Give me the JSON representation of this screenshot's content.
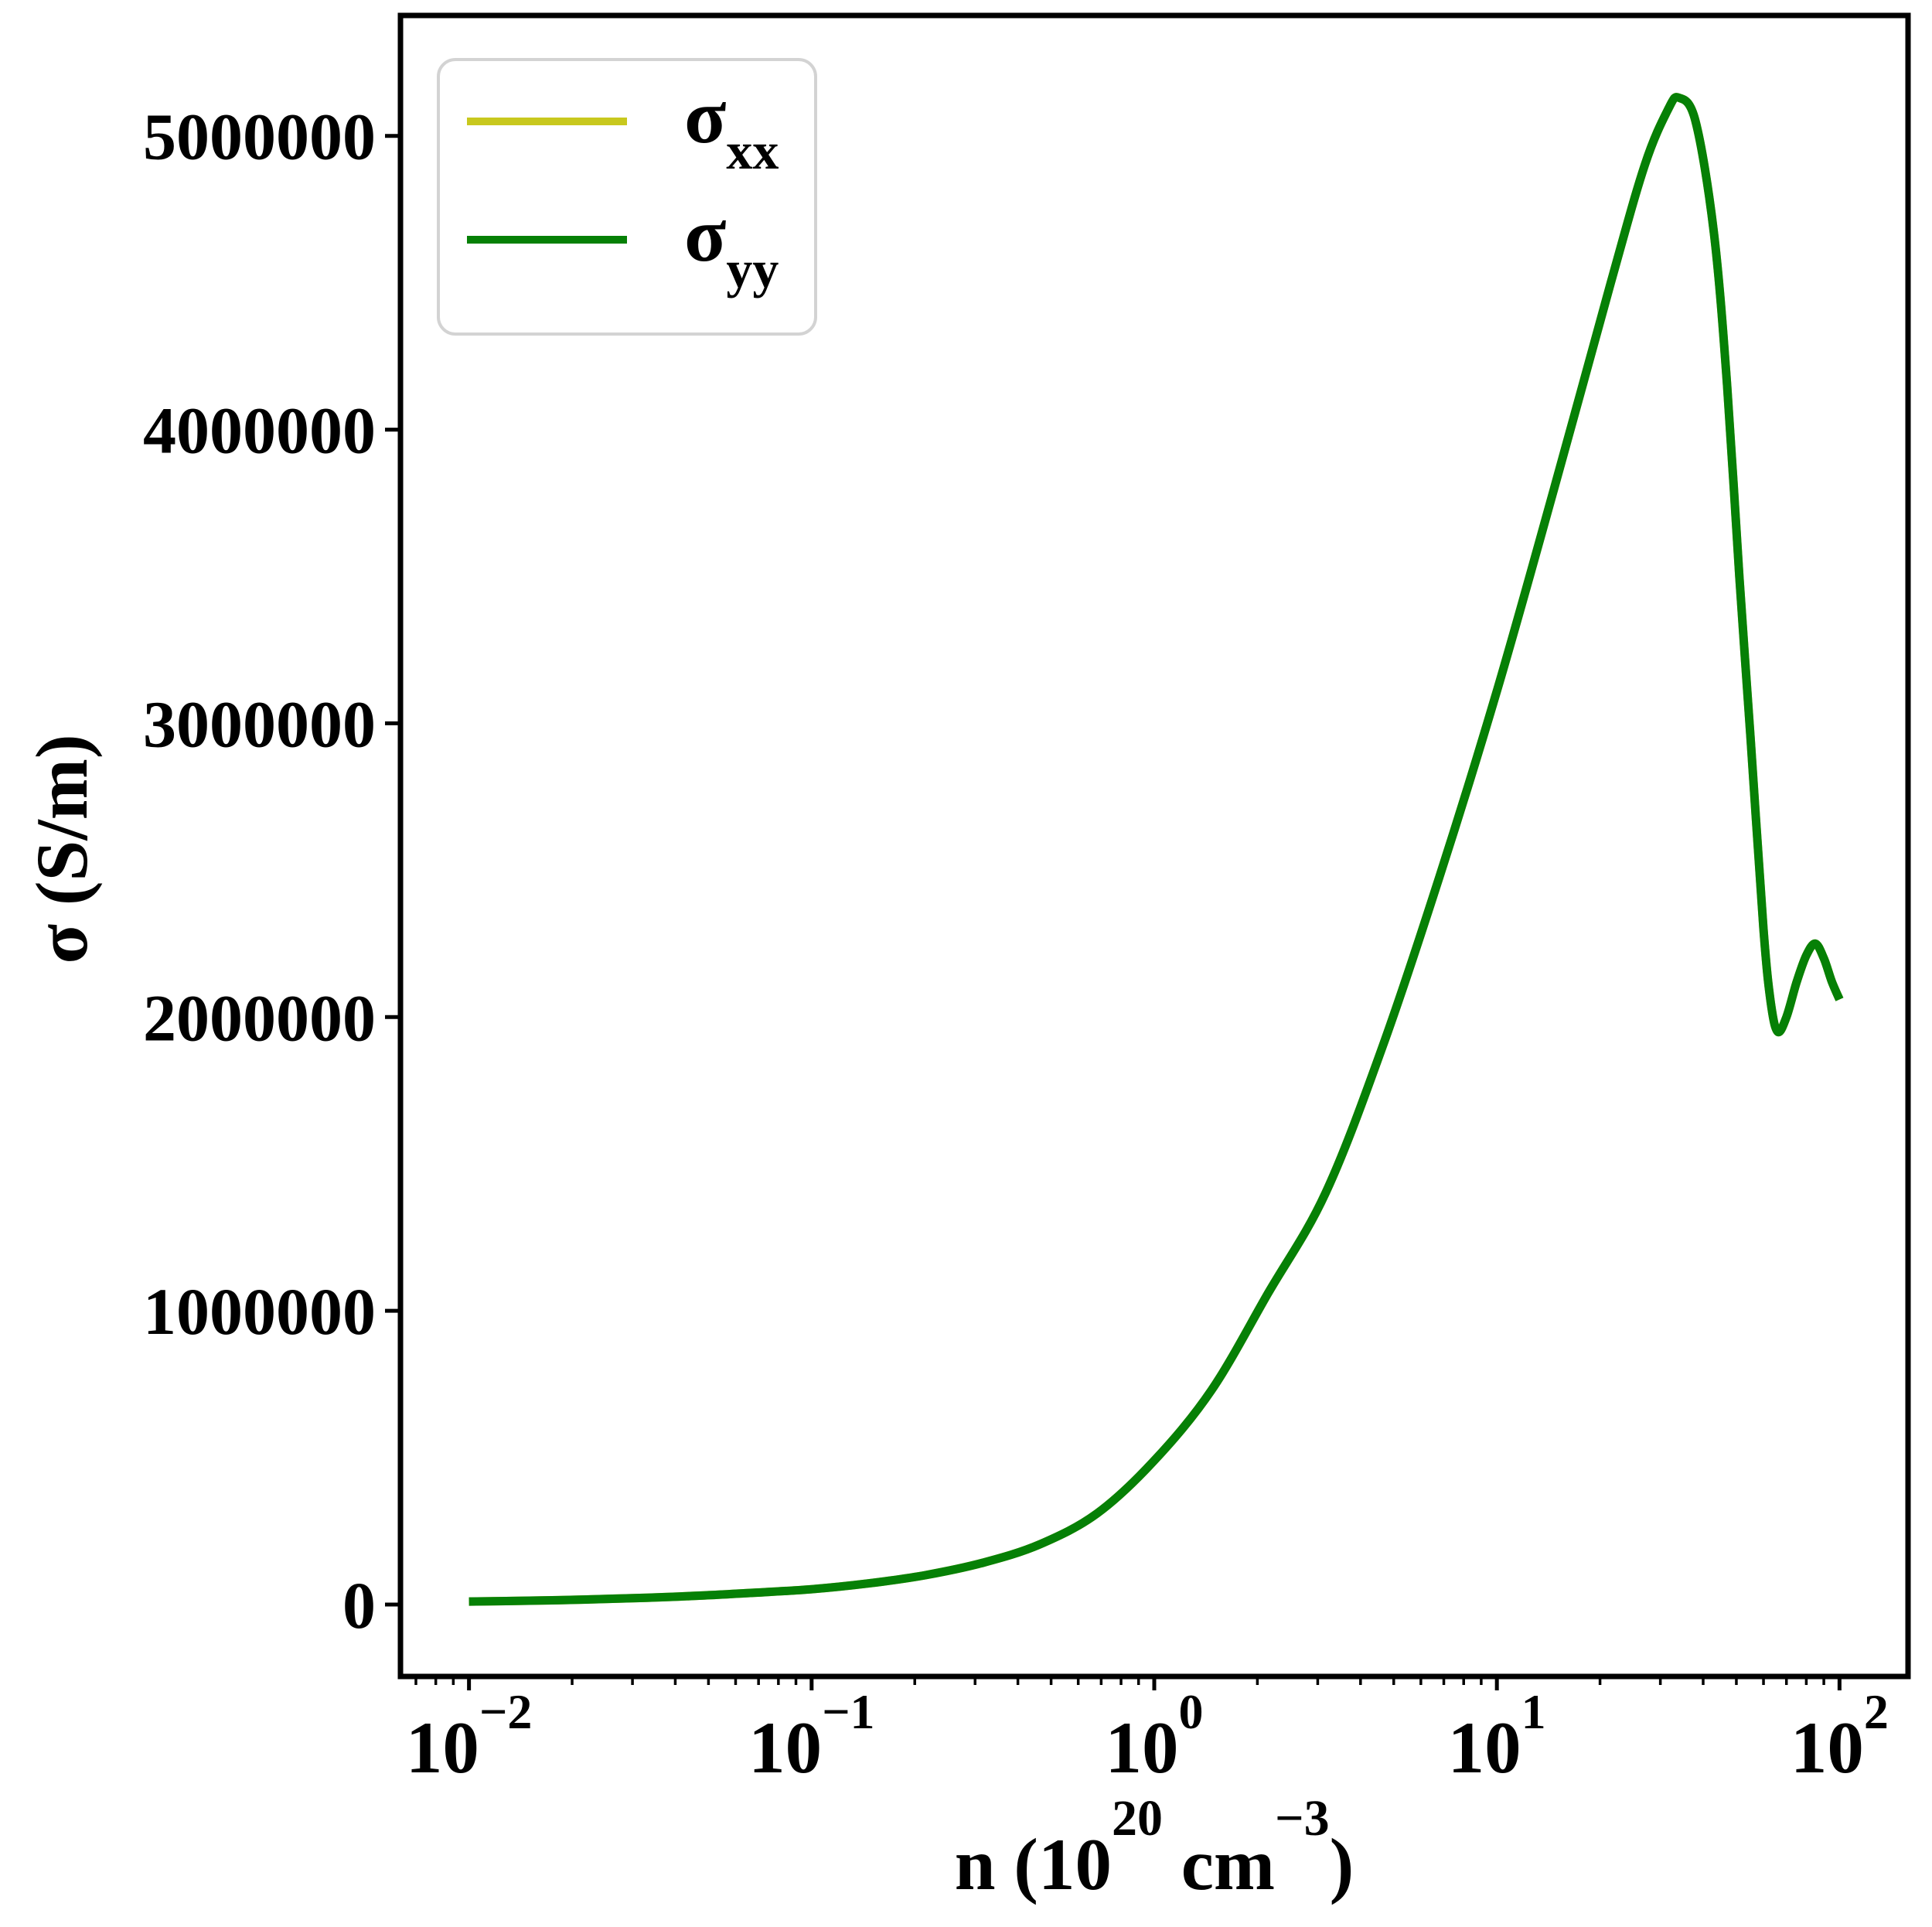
{
  "figure": {
    "background": "#ffffff",
    "text_color": "#000000"
  },
  "axes": {
    "ylabel": "σ (S/m)",
    "xlabel": {
      "prefix": "n (10",
      "exp": "20",
      "mid": " cm",
      "exp2": "−3",
      "suffix": ")"
    }
  },
  "legend": {
    "position": "upper left",
    "border_color": "#d3d3d3",
    "entries": [
      {
        "sym": "σ",
        "sub": "xx",
        "color": "#c8c81e"
      },
      {
        "sym": "σ",
        "sub": "yy",
        "color": "#068006"
      }
    ]
  },
  "chart_data": {
    "type": "line",
    "title": "",
    "xlabel": "n (10^20 cm^-3)",
    "ylabel": "σ (S/m)",
    "xscale": "log",
    "grid": false,
    "legend_position": "upper left",
    "xlim": [
      0.00631,
      158.49
    ],
    "ylim": [
      -245000,
      5410000
    ],
    "x_ticks": [
      0.01,
      0.1,
      1,
      10,
      100
    ],
    "x_tick_labels": [
      {
        "base": "10",
        "exp": "−2"
      },
      {
        "base": "10",
        "exp": "−1"
      },
      {
        "base": "10",
        "exp": "0"
      },
      {
        "base": "10",
        "exp": "1"
      },
      {
        "base": "10",
        "exp": "2"
      }
    ],
    "y_ticks": [
      0,
      1000000,
      2000000,
      3000000,
      4000000,
      5000000
    ],
    "y_tick_labels": [
      "0",
      "1000000",
      "2000000",
      "3000000",
      "4000000",
      "5000000"
    ],
    "x": [
      0.01,
      0.015,
      0.022,
      0.033,
      0.047,
      0.068,
      0.1,
      0.147,
      0.215,
      0.316,
      0.464,
      0.681,
      1.0,
      1.47,
      2.15,
      3.16,
      4.64,
      6.81,
      10,
      14.7,
      21.5,
      27,
      31.6,
      34,
      38,
      43,
      47,
      51,
      55,
      60,
      63,
      66,
      70,
      75,
      80,
      85,
      90,
      95,
      100
    ],
    "series": [
      {
        "name": "σ_xx",
        "color": "#c8c81e",
        "values": [
          10000,
          13000,
          17000,
          23000,
          30000,
          40000,
          52000,
          72000,
          100000,
          142000,
          205000,
          310000,
          490000,
          730000,
          1060000,
          1400000,
          1900000,
          2480000,
          3110000,
          3800000,
          4500000,
          4900000,
          5090000,
          5130000,
          5050000,
          4670000,
          4150000,
          3500000,
          2950000,
          2300000,
          2050000,
          1950000,
          2000000,
          2120000,
          2210000,
          2250000,
          2200000,
          2120000,
          2060000
        ]
      },
      {
        "name": "σ_yy",
        "color": "#068006",
        "values": [
          10000,
          13000,
          17000,
          23000,
          30000,
          40000,
          52000,
          72000,
          100000,
          142000,
          205000,
          310000,
          490000,
          730000,
          1060000,
          1400000,
          1900000,
          2480000,
          3110000,
          3800000,
          4500000,
          4900000,
          5090000,
          5130000,
          5050000,
          4670000,
          4150000,
          3500000,
          2950000,
          2300000,
          2050000,
          1950000,
          2000000,
          2120000,
          2210000,
          2250000,
          2200000,
          2120000,
          2060000
        ]
      }
    ],
    "note": "σ_xx curve coincides exactly with σ_yy and is hidden beneath it; peak ≈5.13e6 S/m at n≈34, local min ≈1.95e6 at n≈66, local max ≈2.25e6 at n≈85"
  }
}
